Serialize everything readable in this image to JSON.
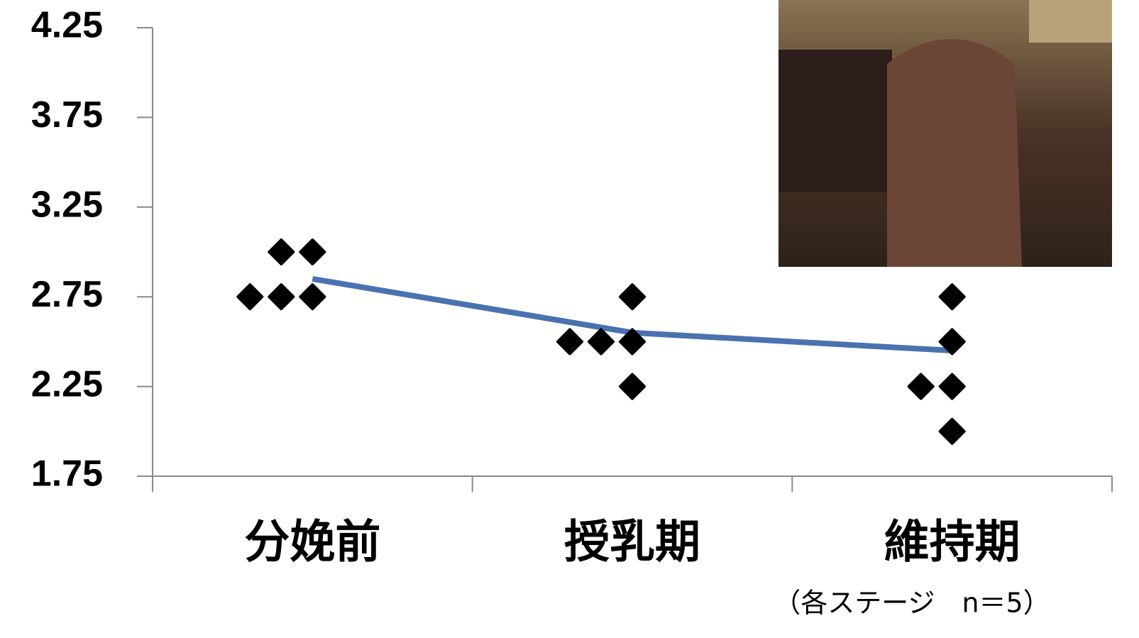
{
  "chart_data": {
    "type": "line",
    "categories": [
      "分娩前",
      "授乳期",
      "維持期"
    ],
    "series": [
      {
        "color": "#4a72b0",
        "values": [
          2.85,
          2.55,
          2.45
        ]
      }
    ],
    "points": [
      [
        2.75,
        2.75,
        2.75,
        3.0,
        3.0
      ],
      [
        2.5,
        2.5,
        2.5,
        2.75,
        2.25
      ],
      [
        2.75,
        2.5,
        2.25,
        2.25,
        2.0
      ]
    ],
    "points_color": "#000000",
    "ylim": [
      1.75,
      4.25
    ],
    "yticks": [
      1.75,
      2.25,
      2.75,
      3.25,
      3.75,
      4.25
    ],
    "annotation": "（各ステージ　n＝5）",
    "grid": false
  }
}
